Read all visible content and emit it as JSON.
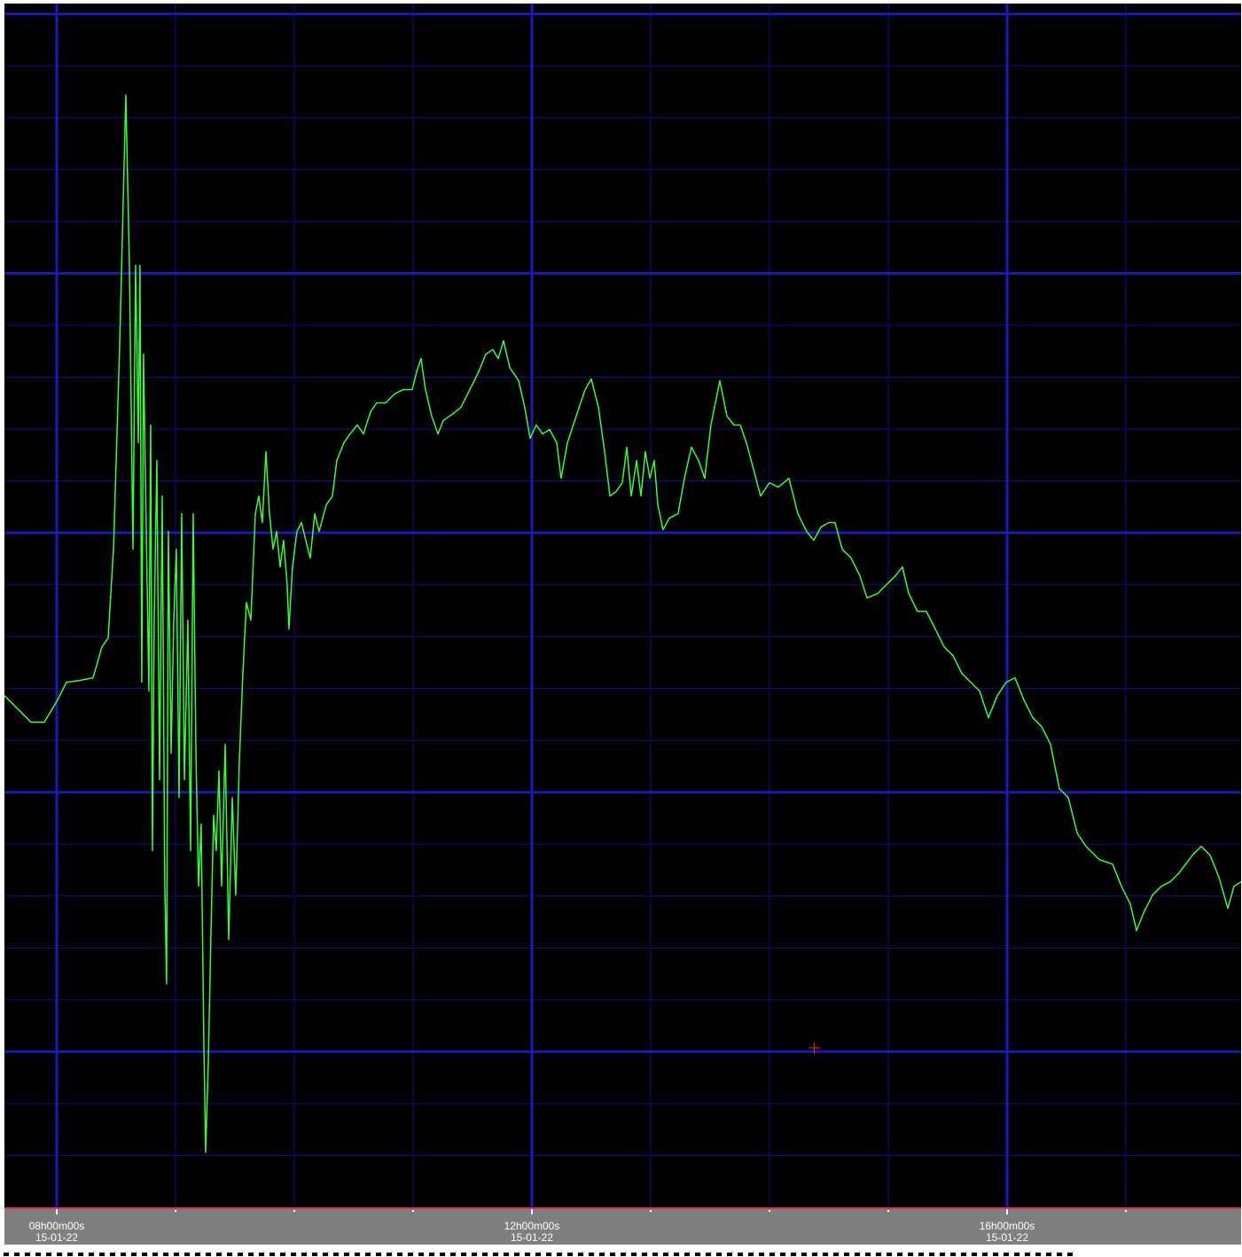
{
  "chart_data": {
    "type": "line",
    "x": [
      7.56,
      7.672,
      7.784,
      7.896,
      8.007,
      8.082,
      8.194,
      8.306,
      8.381,
      8.433,
      8.478,
      8.53,
      8.582,
      8.612,
      8.642,
      8.664,
      8.687,
      8.701,
      8.716,
      8.731,
      8.754,
      8.776,
      8.791,
      8.806,
      8.821,
      8.843,
      8.866,
      8.888,
      8.91,
      8.925,
      8.94,
      8.963,
      8.985,
      9.007,
      9.03,
      9.052,
      9.075,
      9.104,
      9.127,
      9.149,
      9.172,
      9.194,
      9.216,
      9.239,
      9.254,
      9.276,
      9.299,
      9.321,
      9.343,
      9.366,
      9.388,
      9.418,
      9.448,
      9.478,
      9.507,
      9.537,
      9.567,
      9.597,
      9.634,
      9.672,
      9.701,
      9.731,
      9.761,
      9.791,
      9.821,
      9.851,
      9.881,
      9.91,
      9.94,
      9.955,
      9.985,
      10.022,
      10.06,
      10.097,
      10.134,
      10.172,
      10.209,
      10.269,
      10.321,
      10.358,
      10.418,
      10.47,
      10.53,
      10.582,
      10.642,
      10.694,
      10.769,
      10.843,
      10.918,
      10.993,
      11.03,
      11.067,
      11.104,
      11.157,
      11.209,
      11.254,
      11.328,
      11.403,
      11.478,
      11.552,
      11.612,
      11.672,
      11.716,
      11.761,
      11.813,
      11.888,
      11.94,
      11.985,
      12.037,
      12.09,
      12.149,
      12.209,
      12.246,
      12.299,
      12.373,
      12.448,
      12.5,
      12.56,
      12.612,
      12.657,
      12.709,
      12.761,
      12.799,
      12.836,
      12.881,
      12.918,
      12.955,
      12.993,
      13.03,
      13.06,
      13.104,
      13.157,
      13.231,
      13.284,
      13.343,
      13.403,
      13.455,
      13.507,
      13.582,
      13.642,
      13.701,
      13.754,
      13.806,
      13.866,
      13.925,
      14.0,
      14.075,
      14.164,
      14.239,
      14.313,
      14.373,
      14.433,
      14.5,
      14.552,
      14.612,
      14.687,
      14.761,
      14.821,
      14.91,
      14.985,
      15.06,
      15.119,
      15.172,
      15.246,
      15.321,
      15.396,
      15.47,
      15.545,
      15.619,
      15.694,
      15.769,
      15.843,
      15.918,
      15.993,
      16.067,
      16.142,
      16.216,
      16.291,
      16.366,
      16.44,
      16.515,
      16.59,
      16.664,
      16.776,
      16.888,
      16.963,
      17.037,
      17.09,
      17.149,
      17.224,
      17.299,
      17.373,
      17.448,
      17.56,
      17.634,
      17.709,
      17.784,
      17.858,
      17.91,
      17.97
    ],
    "values": [
      9.863,
      9.607,
      9.35,
      9.35,
      9.778,
      10.12,
      10.154,
      10.205,
      10.803,
      10.974,
      12.684,
      16.615,
      21.436,
      18.154,
      12.684,
      18.154,
      14.735,
      18.154,
      10.12,
      16.444,
      13.026,
      9.949,
      15.077,
      6.872,
      11.316,
      14.393,
      8.239,
      13.709,
      6.188,
      4.308,
      13.026,
      8.752,
      11.316,
      12.684,
      7.897,
      13.368,
      8.239,
      11.316,
      6.872,
      13.368,
      8.752,
      6.188,
      7.385,
      3.111,
      1.06,
      2.769,
      5.333,
      7.556,
      6.872,
      8.41,
      6.188,
      8.923,
      5.162,
      7.897,
      6.017,
      8.581,
      10.291,
      11.658,
      11.316,
      13.368,
      13.709,
      13.197,
      14.564,
      13.368,
      12.684,
      13.026,
      12.342,
      12.855,
      12.0,
      11.145,
      12.342,
      13.026,
      13.197,
      12.855,
      12.513,
      13.368,
      13.026,
      13.538,
      13.709,
      14.393,
      14.735,
      14.906,
      15.077,
      14.906,
      15.333,
      15.504,
      15.504,
      15.675,
      15.761,
      15.761,
      16.103,
      16.359,
      15.761,
      15.248,
      14.906,
      15.162,
      15.282,
      15.419,
      15.761,
      16.103,
      16.444,
      16.53,
      16.359,
      16.701,
      16.188,
      15.932,
      15.419,
      14.821,
      15.077,
      14.906,
      14.991,
      14.735,
      14.051,
      14.735,
      15.248,
      15.761,
      15.966,
      15.419,
      14.564,
      13.709,
      13.795,
      13.966,
      14.65,
      13.709,
      14.393,
      13.709,
      14.564,
      14.051,
      14.393,
      13.538,
      13.06,
      13.282,
      13.368,
      14.051,
      14.65,
      14.393,
      14.051,
      15.077,
      15.932,
      15.248,
      15.077,
      15.077,
      14.735,
      14.222,
      13.709,
      13.966,
      13.88,
      14.051,
      13.368,
      13.026,
      12.855,
      13.111,
      13.197,
      13.197,
      12.684,
      12.513,
      12.171,
      11.744,
      11.829,
      12.0,
      12.171,
      12.342,
      11.829,
      11.487,
      11.487,
      11.145,
      10.803,
      10.632,
      10.291,
      10.12,
      9.949,
      9.436,
      9.863,
      10.12,
      10.205,
      9.778,
      9.436,
      9.265,
      8.923,
      8.068,
      7.897,
      7.214,
      6.957,
      6.701,
      6.615,
      6.188,
      5.846,
      5.333,
      5.675,
      6.017,
      6.188,
      6.274,
      6.445,
      6.786,
      6.957,
      6.786,
      6.359,
      5.761,
      6.188,
      6.274
    ],
    "color": "#33ff33",
    "xlim": [
      7.56,
      17.97
    ],
    "xticks": [
      {
        "value": 8,
        "label": "08h00m00s",
        "date": "15-01-22"
      },
      {
        "value": 12,
        "label": "12h00m00s",
        "date": "15-01-22"
      },
      {
        "value": 16,
        "label": "16h00m00s",
        "date": "15-01-22"
      }
    ],
    "xgrid_minor": [
      9,
      10,
      11,
      13,
      14,
      15,
      17
    ],
    "ylim": [
      0,
      23.2
    ],
    "yticks": [
      3,
      8,
      13,
      18,
      23
    ],
    "ygrid_minor": [
      1,
      2,
      4,
      5,
      6,
      7,
      9,
      10,
      11,
      12,
      14,
      15,
      16,
      17,
      19,
      20,
      21,
      22
    ],
    "grid": true
  }
}
